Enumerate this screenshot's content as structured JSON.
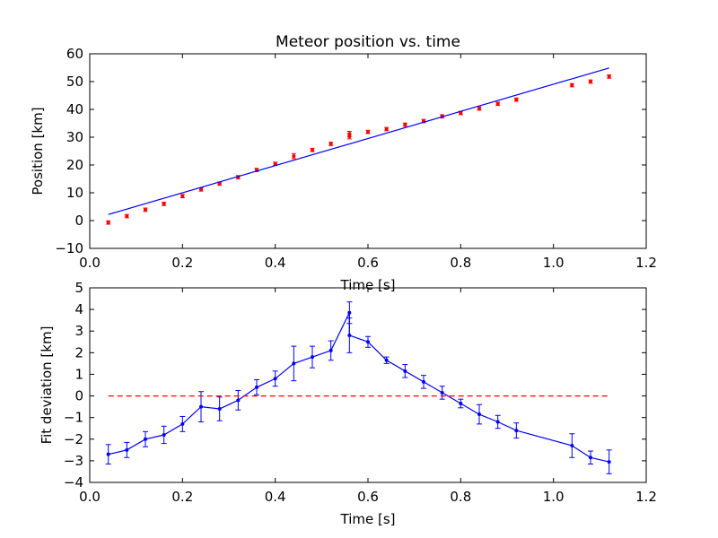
{
  "chart_data": [
    {
      "type": "scatter",
      "title": "Meteor position vs. time",
      "xlabel": "Time [s]",
      "ylabel": "Position [km]",
      "xlim": [
        0.0,
        1.2
      ],
      "ylim": [
        -10,
        60
      ],
      "xticks": [
        "0.0",
        "0.2",
        "0.4",
        "0.6",
        "0.8",
        "1.0",
        "1.2"
      ],
      "yticks": [
        "−10",
        "0",
        "10",
        "20",
        "30",
        "40",
        "50",
        "60"
      ],
      "grid": false,
      "series": [
        {
          "kind": "errorbar-points",
          "color": "#ff0000",
          "x": [
            0.04,
            0.08,
            0.12,
            0.16,
            0.2,
            0.24,
            0.28,
            0.32,
            0.36,
            0.4,
            0.44,
            0.48,
            0.52,
            0.56,
            0.56,
            0.6,
            0.64,
            0.68,
            0.72,
            0.76,
            0.8,
            0.84,
            0.88,
            0.92,
            1.04,
            1.08,
            1.12
          ],
          "y": [
            -0.7,
            1.6,
            3.9,
            6.0,
            8.8,
            11.2,
            13.3,
            15.6,
            18.2,
            20.4,
            23.2,
            25.4,
            27.6,
            30.3,
            31.2,
            31.9,
            32.9,
            34.5,
            35.8,
            37.5,
            38.7,
            40.3,
            42.0,
            43.5,
            48.7,
            50.0,
            51.8
          ],
          "err": [
            0.6,
            0.6,
            0.6,
            0.6,
            0.6,
            0.6,
            0.6,
            0.6,
            0.6,
            0.6,
            0.9,
            0.6,
            0.6,
            0.9,
            0.9,
            0.6,
            0.6,
            0.6,
            0.6,
            0.6,
            0.6,
            0.6,
            0.6,
            0.6,
            0.6,
            0.6,
            0.6
          ]
        },
        {
          "kind": "fit-line",
          "color": "#0000ff",
          "x": [
            0.04,
            1.12
          ],
          "y": [
            2.2,
            54.9
          ]
        }
      ]
    },
    {
      "type": "line",
      "title": "",
      "xlabel": "Time [s]",
      "ylabel": "Fit deviation [km]",
      "xlim": [
        0.0,
        1.2
      ],
      "ylim": [
        -4,
        5
      ],
      "xticks": [
        "0.0",
        "0.2",
        "0.4",
        "0.6",
        "0.8",
        "1.0",
        "1.2"
      ],
      "yticks": [
        "−4",
        "−3",
        "−2",
        "−1",
        "0",
        "1",
        "2",
        "3",
        "4",
        "5"
      ],
      "grid": false,
      "series": [
        {
          "kind": "errorbar-line",
          "color": "#0000ff",
          "x": [
            0.04,
            0.08,
            0.12,
            0.16,
            0.2,
            0.24,
            0.28,
            0.32,
            0.36,
            0.4,
            0.44,
            0.48,
            0.52,
            0.56,
            0.56,
            0.6,
            0.64,
            0.68,
            0.72,
            0.76,
            0.8,
            0.84,
            0.88,
            0.92,
            1.04,
            1.08,
            1.12
          ],
          "y": [
            -2.7,
            -2.5,
            -2.0,
            -1.8,
            -1.3,
            -0.5,
            -0.6,
            -0.2,
            0.4,
            0.8,
            1.5,
            1.8,
            2.1,
            3.85,
            2.8,
            2.5,
            1.65,
            1.15,
            0.65,
            0.15,
            -0.35,
            -0.85,
            -1.2,
            -1.6,
            -2.3,
            -2.85,
            -3.05
          ],
          "err": [
            0.45,
            0.35,
            0.35,
            0.4,
            0.35,
            0.7,
            0.55,
            0.45,
            0.35,
            0.35,
            0.8,
            0.5,
            0.45,
            0.5,
            0.8,
            0.25,
            0.15,
            0.3,
            0.3,
            0.3,
            0.2,
            0.45,
            0.3,
            0.35,
            0.55,
            0.3,
            0.55
          ]
        },
        {
          "kind": "reference-line",
          "color": "#ff0000",
          "style": "dashed",
          "x": [
            0.04,
            1.12
          ],
          "y": [
            0,
            0
          ]
        }
      ]
    }
  ]
}
